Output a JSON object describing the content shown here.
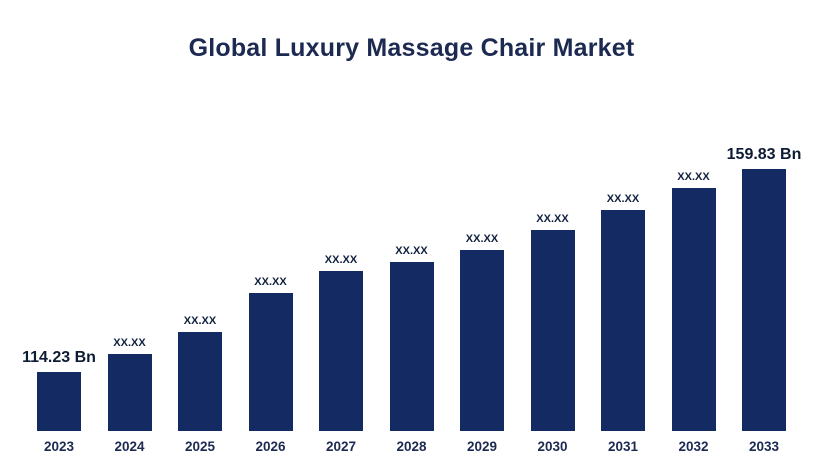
{
  "title": "Global Luxury Massage Chair Market",
  "colors": {
    "bar": "#132a62",
    "title": "#1c2951",
    "axis_labels": "#1c2951",
    "value_labels": "#10203f"
  },
  "chart_data": {
    "type": "bar",
    "title": "Global Luxury Massage Chair Market",
    "categories": [
      "2023",
      "2024",
      "2025",
      "2026",
      "2027",
      "2028",
      "2029",
      "2030",
      "2031",
      "2032",
      "2033"
    ],
    "value_labels": [
      "114.23 Bn",
      "XX.XX",
      "XX.XX",
      "XX.XX",
      "XX.XX",
      "XX.XX",
      "XX.XX",
      "XX.XX",
      "XX.XX",
      "XX.XX",
      "159.83 Bn"
    ],
    "values_bn": [
      114.23,
      null,
      null,
      null,
      null,
      null,
      null,
      null,
      null,
      null,
      159.83
    ],
    "bar_heights_pct": [
      22.6,
      29.3,
      37.8,
      52.7,
      61.1,
      64.7,
      68.9,
      76.7,
      84.5,
      92.6,
      100
    ],
    "emphasized_labels": [
      0,
      10
    ],
    "xlabel": "",
    "ylabel": "",
    "grid": false,
    "legend": false,
    "axis_lines": false
  }
}
